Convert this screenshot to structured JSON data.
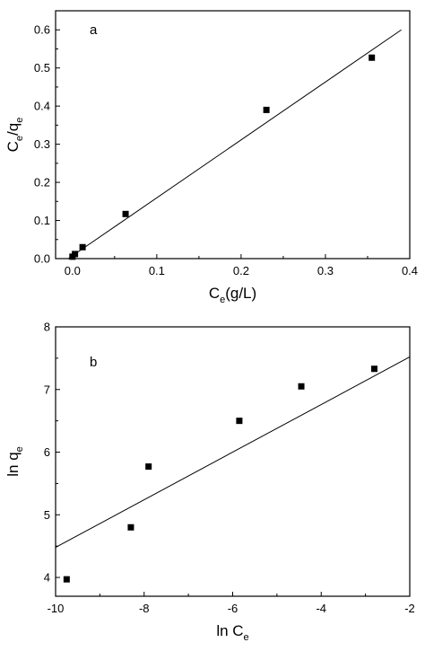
{
  "chart_data": [
    {
      "type": "scatter",
      "panel_label": "a",
      "xlabel": {
        "main": "C",
        "sub": "e",
        "suffix": "(g/L)"
      },
      "ylabel": {
        "parts": [
          {
            "t": "C",
            "s": false
          },
          {
            "t": "e",
            "s": true
          },
          {
            "t": "/q",
            "s": false
          },
          {
            "t": "e",
            "s": true
          }
        ]
      },
      "xlim": [
        -0.02,
        0.4
      ],
      "ylim": [
        0.0,
        0.65
      ],
      "xticks": [
        0.0,
        0.1,
        0.2,
        0.3,
        0.4
      ],
      "xtick_labels": [
        "0.0",
        "0.1",
        "0.2",
        "0.3",
        "0.4"
      ],
      "yticks": [
        0.0,
        0.1,
        0.2,
        0.3,
        0.4,
        0.5,
        0.6
      ],
      "ytick_labels": [
        "0.0",
        "0.1",
        "0.2",
        "0.3",
        "0.4",
        "0.5",
        "0.6"
      ],
      "series": [
        {
          "kind": "points",
          "x": [
            0.0,
            0.003,
            0.012,
            0.063,
            0.23,
            0.355
          ],
          "y": [
            0.005,
            0.012,
            0.03,
            0.117,
            0.39,
            0.527
          ]
        },
        {
          "kind": "fit_line",
          "x": [
            -0.005,
            0.39
          ],
          "y": [
            0.0,
            0.6
          ]
        }
      ],
      "grid": false,
      "marker_color": "#000000",
      "line_color": "#000000"
    },
    {
      "type": "scatter",
      "panel_label": "b",
      "xlabel": {
        "main": "ln C",
        "sub": "e",
        "suffix": ""
      },
      "ylabel": {
        "parts": [
          {
            "t": "ln q",
            "s": false
          },
          {
            "t": "e",
            "s": true
          }
        ]
      },
      "xlim": [
        -10,
        -2
      ],
      "ylim": [
        3.7,
        8
      ],
      "xticks": [
        -10,
        -8,
        -6,
        -4,
        -2
      ],
      "xtick_labels": [
        "-10",
        "-8",
        "-6",
        "-4",
        "-2"
      ],
      "yticks": [
        4,
        5,
        6,
        7,
        8
      ],
      "ytick_labels": [
        "4",
        "5",
        "6",
        "7",
        "8"
      ],
      "series": [
        {
          "kind": "points",
          "x": [
            -9.75,
            -8.3,
            -7.9,
            -5.85,
            -4.45,
            -2.8
          ],
          "y": [
            3.97,
            4.8,
            5.77,
            6.5,
            7.05,
            7.33
          ]
        },
        {
          "kind": "fit_line",
          "x": [
            -10,
            -2
          ],
          "y": [
            4.48,
            7.52
          ]
        }
      ],
      "grid": false,
      "marker_color": "#000000",
      "line_color": "#000000"
    }
  ]
}
